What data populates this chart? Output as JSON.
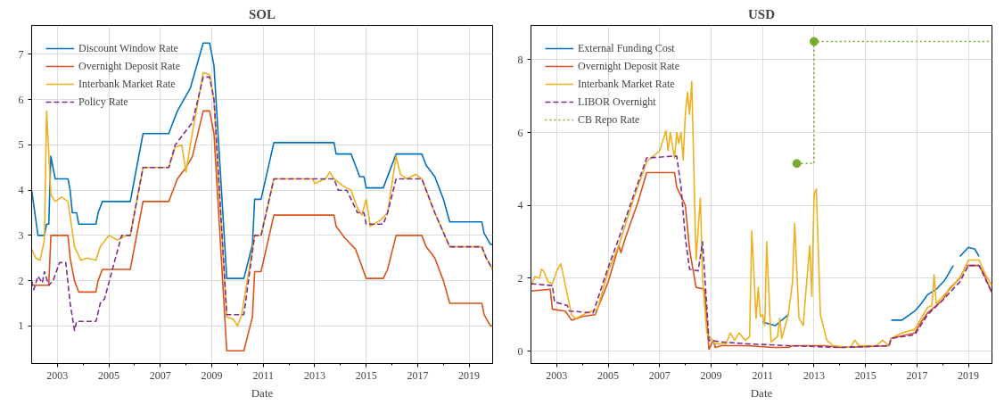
{
  "chart_data": [
    {
      "type": "line",
      "title": "SOL",
      "xlabel": "Date",
      "grid": true,
      "legend": "top left",
      "xlim": [
        "2002-01",
        "2019-12"
      ],
      "ylim": [
        0.17,
        7.64
      ],
      "yticks": [
        1,
        2,
        3,
        4,
        5,
        6,
        7
      ],
      "xticks": [
        "2003",
        {
          "value": "2004",
          "label": null
        },
        "2005",
        {
          "value": "2006",
          "label": null
        },
        "2007",
        {
          "value": "2008",
          "label": null
        },
        "2009",
        {
          "value": "2010",
          "label": null
        },
        "2011",
        {
          "value": "2012",
          "label": null
        },
        "2013",
        {
          "value": "2014",
          "label": null
        },
        "2015",
        {
          "value": "2016",
          "label": null
        },
        "2017",
        {
          "value": "2018",
          "label": null
        },
        "2019"
      ],
      "series": [
        {
          "name": "Discount Window Rate",
          "color": "#0072bd",
          "line_style": "solid",
          "x": [
            "2002-01",
            "2002-04",
            "2002-07",
            "2002-08",
            "2002-09",
            "2002-10",
            "2002-12",
            "2003-06",
            "2003-07",
            "2003-08",
            "2003-10",
            "2003-11",
            "2004-07",
            "2004-08",
            "2004-10",
            "2005-11",
            "2006-05",
            "2007-05",
            "2007-07",
            "2007-09",
            "2007-12",
            "2008-03",
            "2008-09",
            "2008-12",
            "2009-02",
            "2009-08",
            "2010-04",
            "2010-08",
            "2010-09",
            "2010-12",
            "2011-06",
            "2013-10",
            "2013-11",
            "2014-06",
            "2014-08",
            "2014-10",
            "2014-12",
            "2015-01",
            "2015-09",
            "2016-03",
            "2017-03",
            "2017-05",
            "2017-09",
            "2017-11",
            "2018-01",
            "2018-04",
            "2019-07",
            "2019-08",
            "2019-11",
            "2019-12"
          ],
          "values": [
            4.0,
            3.0,
            3.0,
            3.25,
            3.25,
            4.75,
            4.25,
            4.25,
            4.0,
            3.5,
            3.5,
            3.25,
            3.25,
            3.5,
            3.75,
            3.75,
            5.25,
            5.25,
            5.5,
            5.75,
            6.0,
            6.25,
            7.25,
            7.25,
            6.75,
            2.05,
            2.05,
            2.8,
            3.8,
            3.8,
            5.05,
            5.05,
            4.8,
            4.8,
            4.55,
            4.3,
            4.3,
            4.05,
            4.05,
            4.8,
            4.8,
            4.55,
            4.3,
            4.05,
            3.8,
            3.3,
            3.3,
            3.05,
            2.8,
            2.8
          ]
        },
        {
          "name": "Overnight Deposit Rate",
          "color": "#d95319",
          "line_style": "solid",
          "x": [
            "2002-01",
            "2002-09",
            "2002-10",
            "2003-06",
            "2003-07",
            "2003-09",
            "2003-11",
            "2004-07",
            "2004-08",
            "2004-10",
            "2005-11",
            "2006-05",
            "2007-05",
            "2007-07",
            "2007-09",
            "2008-01",
            "2008-04",
            "2008-09",
            "2008-12",
            "2009-02",
            "2009-08",
            "2010-04",
            "2010-08",
            "2010-09",
            "2010-12",
            "2011-06",
            "2013-10",
            "2013-11",
            "2014-03",
            "2014-08",
            "2014-10",
            "2015-01",
            "2015-09",
            "2015-11",
            "2016-03",
            "2017-03",
            "2017-05",
            "2017-09",
            "2018-01",
            "2018-04",
            "2019-07",
            "2019-08",
            "2019-11",
            "2019-12"
          ],
          "values": [
            1.9,
            1.9,
            3.0,
            3.0,
            2.5,
            2.0,
            1.75,
            1.75,
            2.0,
            2.25,
            2.25,
            3.75,
            3.75,
            4.0,
            4.25,
            4.5,
            4.75,
            5.75,
            5.75,
            5.25,
            0.45,
            0.45,
            1.2,
            2.2,
            2.2,
            3.45,
            3.45,
            3.2,
            2.95,
            2.7,
            2.45,
            2.05,
            2.05,
            2.25,
            3.0,
            3.0,
            2.75,
            2.5,
            2.0,
            1.5,
            1.5,
            1.25,
            1.0,
            1.0
          ]
        },
        {
          "name": "Interbank Market Rate",
          "color": "#edb120",
          "line_style": "solid",
          "x": [
            "2002-01",
            "2002-03",
            "2002-05",
            "2002-07",
            "2002-08",
            "2002-10",
            "2002-12",
            "2003-03",
            "2003-06",
            "2003-09",
            "2003-12",
            "2004-03",
            "2004-07",
            "2004-09",
            "2005-01",
            "2005-05",
            "2005-09",
            "2005-11",
            "2006-05",
            "2007-05",
            "2007-08",
            "2007-11",
            "2008-01",
            "2008-03",
            "2008-09",
            "2008-12",
            "2009-02",
            "2009-08",
            "2009-11",
            "2010-01",
            "2010-03",
            "2010-09",
            "2010-12",
            "2011-06",
            "2012-12",
            "2013-01",
            "2013-06",
            "2013-08",
            "2013-10",
            "2014-02",
            "2014-06",
            "2014-09",
            "2014-11",
            "2015-01",
            "2015-03",
            "2015-08",
            "2015-11",
            "2016-03",
            "2016-05",
            "2016-08",
            "2016-12",
            "2017-03",
            "2017-09",
            "2018-04",
            "2019-07",
            "2019-09",
            "2019-12"
          ],
          "values": [
            2.7,
            2.5,
            2.45,
            2.9,
            5.75,
            3.9,
            3.75,
            3.85,
            3.75,
            2.75,
            2.45,
            2.5,
            2.45,
            2.75,
            3.0,
            2.9,
            3.0,
            3.0,
            4.5,
            4.5,
            4.95,
            5.0,
            4.4,
            5.0,
            6.6,
            6.55,
            6.0,
            1.2,
            1.15,
            1.0,
            1.25,
            3.0,
            3.0,
            4.25,
            4.25,
            4.15,
            4.25,
            4.4,
            4.25,
            4.1,
            4.0,
            3.6,
            3.45,
            3.8,
            3.2,
            3.35,
            3.5,
            4.75,
            4.35,
            4.25,
            4.35,
            4.25,
            3.5,
            2.75,
            2.75,
            2.5,
            2.25
          ]
        },
        {
          "name": "Policy Rate",
          "color": "#7e2f8e",
          "line_style": "dashed",
          "x": [
            "2002-01",
            "2002-02",
            "2002-04",
            "2002-06",
            "2002-07",
            "2002-09",
            "2002-11",
            "2003-02",
            "2003-05",
            "2003-07",
            "2003-09",
            "2003-10",
            "2004-07",
            "2004-09",
            "2004-11",
            "2005-03",
            "2005-07",
            "2005-11",
            "2006-05",
            "2007-05",
            "2007-08",
            "2007-12",
            "2008-04",
            "2008-09",
            "2008-12",
            "2009-02",
            "2009-08",
            "2010-04",
            "2010-09",
            "2010-12",
            "2011-06",
            "2013-10",
            "2013-12",
            "2014-04",
            "2014-09",
            "2014-12",
            "2015-01",
            "2015-09",
            "2015-11",
            "2016-03",
            "2017-03",
            "2017-09",
            "2018-04",
            "2019-07",
            "2019-09",
            "2019-12"
          ],
          "values": [
            2.0,
            1.8,
            2.1,
            1.95,
            2.2,
            1.9,
            2.0,
            2.4,
            2.4,
            1.5,
            0.9,
            1.1,
            1.1,
            1.5,
            1.6,
            2.3,
            3.0,
            3.0,
            4.5,
            4.5,
            5.0,
            5.25,
            5.5,
            6.5,
            6.5,
            6.0,
            1.25,
            1.25,
            3.0,
            3.0,
            4.25,
            4.25,
            4.0,
            4.0,
            3.5,
            3.5,
            3.25,
            3.25,
            3.5,
            4.25,
            4.25,
            3.5,
            2.75,
            2.75,
            2.5,
            2.25
          ]
        }
      ]
    },
    {
      "type": "line",
      "title": "USD",
      "xlabel": "Date",
      "grid": true,
      "legend": "top left",
      "xlim": [
        "2002-01",
        "2019-12"
      ],
      "ylim": [
        -0.34,
        8.94
      ],
      "yticks": [
        0,
        2,
        4,
        6,
        8
      ],
      "xticks": [
        "2003",
        {
          "value": "2004",
          "label": null
        },
        "2005",
        {
          "value": "2006",
          "label": null
        },
        "2007",
        {
          "value": "2008",
          "label": null
        },
        "2009",
        {
          "value": "2010",
          "label": null
        },
        "2011",
        {
          "value": "2012",
          "label": null
        },
        "2013",
        {
          "value": "2014",
          "label": null
        },
        "2015",
        {
          "value": "2016",
          "label": null
        },
        "2017",
        {
          "value": "2018",
          "label": null
        },
        "2019"
      ],
      "series": [
        {
          "name": "External Funding Cost",
          "color": "#0072bd",
          "line_style": "solid",
          "x": [
            "2011-01",
            "2011-04",
            "2011-07",
            "2011-10",
            "2012-01",
            "2012-02",
            "2016-01",
            "2016-06",
            "2016-12",
            "2017-03",
            "2017-06",
            "2017-10",
            "2018-02",
            "2018-04",
            "2018-05",
            "2018-06",
            "2018-07",
            "2018-09",
            "2019-01",
            "2019-04",
            "2019-06"
          ],
          "values": [
            0.8,
            0.75,
            0.7,
            0.85,
            1.0,
            null,
            0.85,
            0.85,
            1.1,
            1.3,
            1.55,
            1.7,
            1.95,
            2.15,
            2.25,
            2.35,
            null,
            2.6,
            2.85,
            2.8,
            2.6
          ]
        },
        {
          "name": "Overnight Deposit Rate",
          "color": "#d95319",
          "line_style": "solid",
          "x": [
            "2002-01",
            "2002-10",
            "2002-11",
            "2003-05",
            "2003-08",
            "2004-01",
            "2004-07",
            "2005-01",
            "2005-06",
            "2005-07",
            "2005-09",
            "2006-03",
            "2006-07",
            "2007-08",
            "2007-09",
            "2008-01",
            "2008-03",
            "2008-05",
            "2008-06",
            "2008-10",
            "2008-12",
            "2009-02",
            "2009-03",
            "2009-06",
            "2010-06",
            "2011-06",
            "2012-01",
            "2012-03",
            "2013-06",
            "2014-01",
            "2015-01",
            "2015-12",
            "2016-01",
            "2016-12",
            "2017-03",
            "2017-06",
            "2017-09",
            "2018-01",
            "2018-04",
            "2018-09",
            "2018-12",
            "2019-06",
            "2019-08",
            "2019-12"
          ],
          "values": [
            1.65,
            1.7,
            1.15,
            1.1,
            0.85,
            0.95,
            1.0,
            1.9,
            2.9,
            2.7,
            3.1,
            4.1,
            4.9,
            4.9,
            4.5,
            4.0,
            2.8,
            2.1,
            1.75,
            1.7,
            0.05,
            0.3,
            0.1,
            0.15,
            0.15,
            0.1,
            0.1,
            0.15,
            0.15,
            0.1,
            0.12,
            0.15,
            0.35,
            0.5,
            0.8,
            1.05,
            1.2,
            1.4,
            1.7,
            2.0,
            2.35,
            2.35,
            2.15,
            1.6
          ]
        },
        {
          "name": "Interbank Market Rate",
          "color": "#edb120",
          "line_style": "solid",
          "x": [
            "2002-01",
            "2002-03",
            "2002-05",
            "2002-06",
            "2002-07",
            "2002-09",
            "2002-11",
            "2003-01",
            "2003-03",
            "2003-06",
            "2003-08",
            "2003-10",
            "2004-03",
            "2004-08",
            "2005-01",
            "2005-06",
            "2006-01",
            "2006-07",
            "2007-01",
            "2007-04",
            "2007-05",
            "2007-06",
            "2007-08",
            "2007-09",
            "2007-10",
            "2007-11",
            "2007-12",
            "2008-01",
            "2008-02",
            "2008-03",
            "2008-04",
            "2008-06",
            "2008-08",
            "2008-09",
            "2008-11",
            "2009-03",
            "2009-08",
            "2009-10",
            "2009-12",
            "2010-02",
            "2010-05",
            "2010-07",
            "2010-08",
            "2010-10",
            "2010-11",
            "2010-12",
            "2011-01",
            "2011-02",
            "2011-03",
            "2011-05",
            "2011-08",
            "2011-09",
            "2011-10",
            "2012-01",
            "2012-03",
            "2012-04",
            "2012-06",
            "2012-08",
            "2012-09",
            "2012-11",
            "2012-12",
            "2013-01",
            "2013-02",
            "2013-04",
            "2013-07",
            "2013-10",
            "2014-06",
            "2014-08",
            "2014-10",
            "2015-06",
            "2015-09",
            "2015-12",
            "2016-01",
            "2016-06",
            "2016-12",
            "2017-03",
            "2017-06",
            "2017-08",
            "2017-09",
            "2017-10",
            "2018-01",
            "2018-06",
            "2018-10",
            "2019-01",
            "2019-06",
            "2019-09",
            "2019-12"
          ],
          "values": [
            1.8,
            2.05,
            2.0,
            2.25,
            2.2,
            1.9,
            1.85,
            2.2,
            2.4,
            1.55,
            1.0,
            0.9,
            1.05,
            1.15,
            2.2,
            2.9,
            4.2,
            5.2,
            5.5,
            6.05,
            5.5,
            6.0,
            5.3,
            6.0,
            5.7,
            6.0,
            5.25,
            6.5,
            7.1,
            6.5,
            7.4,
            2.5,
            4.2,
            2.0,
            0.5,
            0.2,
            0.2,
            0.5,
            0.3,
            0.5,
            0.3,
            0.4,
            3.3,
            0.9,
            1.75,
            0.95,
            1.0,
            0.7,
            3.0,
            0.25,
            0.4,
            0.9,
            0.35,
            1.0,
            1.9,
            3.5,
            0.9,
            0.7,
            1.5,
            2.9,
            1.5,
            4.3,
            4.45,
            1.0,
            0.3,
            0.15,
            0.1,
            0.3,
            0.15,
            0.15,
            0.3,
            0.15,
            0.35,
            0.5,
            0.6,
            0.9,
            1.2,
            1.25,
            2.1,
            1.3,
            1.5,
            1.8,
            2.1,
            2.5,
            2.5,
            2.1,
            1.8
          ]
        },
        {
          "name": "LIBOR Overnight",
          "color": "#7e2f8e",
          "line_style": "dashed",
          "x": [
            "2002-01",
            "2002-11",
            "2002-12",
            "2003-06",
            "2003-07",
            "2004-06",
            "2005-01",
            "2005-06",
            "2006-01",
            "2006-07",
            "2007-07",
            "2007-09",
            "2007-11",
            "2008-01",
            "2008-03",
            "2008-07",
            "2008-09",
            "2008-12",
            "2009-06",
            "2010-06",
            "2012-01",
            "2014-01",
            "2015-12",
            "2016-01",
            "2016-12",
            "2017-06",
            "2018-01",
            "2018-09",
            "2019-01",
            "2019-06",
            "2019-12"
          ],
          "values": [
            1.85,
            1.8,
            1.35,
            1.25,
            1.1,
            1.05,
            2.3,
            3.1,
            4.3,
            5.3,
            5.35,
            5.35,
            4.5,
            3.1,
            2.25,
            2.2,
            3.0,
            0.3,
            0.25,
            0.2,
            0.15,
            0.1,
            0.15,
            0.35,
            0.45,
            1.0,
            1.4,
            1.9,
            2.35,
            2.35,
            1.6
          ]
        },
        {
          "name": "CB Repo Rate",
          "color": "#77ac30",
          "type": "step",
          "line_style": "dotted",
          "marker": "circle",
          "x": [
            "2012-05",
            "2013-01",
            "2019-12"
          ],
          "values": [
            5.15,
            8.5,
            8.5
          ]
        }
      ]
    }
  ]
}
